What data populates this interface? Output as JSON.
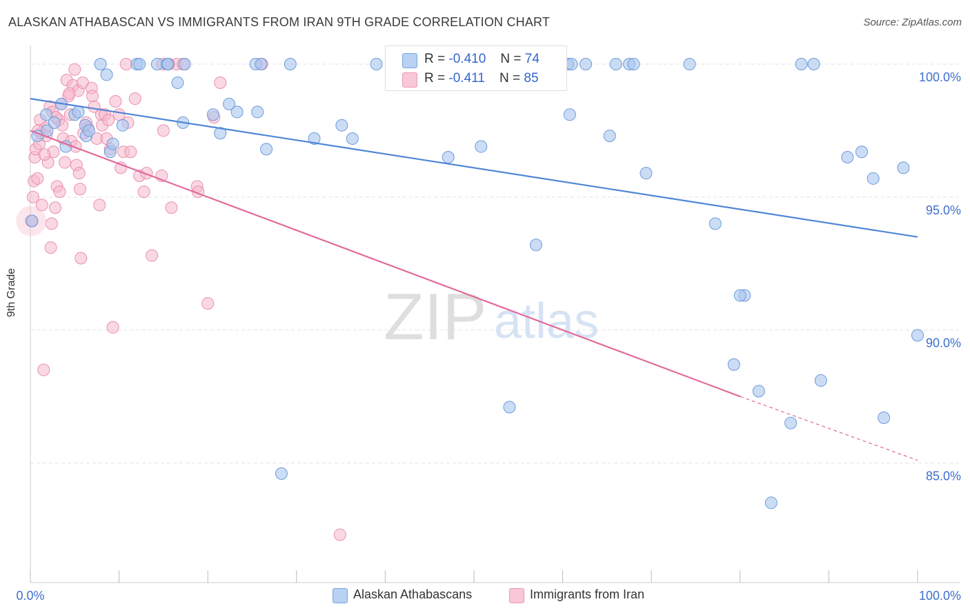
{
  "title": "ALASKAN ATHABASCAN VS IMMIGRANTS FROM IRAN 9TH GRADE CORRELATION CHART",
  "source": "Source: ZipAtlas.com",
  "watermark": {
    "zip": "ZIP",
    "atlas": "atlas"
  },
  "colors": {
    "blue": "#4f86d6",
    "blue_fill": "#a9c7ef",
    "pink": "#e2699a",
    "pink_fill": "#f5b8cc",
    "grid": "#e2e2e2",
    "axis_text": "#3d6fcc"
  },
  "legend": {
    "rows": [
      {
        "r_label": "R =",
        "r_value": "-0.410",
        "n_label": "N =",
        "n_value": "74"
      },
      {
        "r_label": "R =",
        "r_value": "-0.411",
        "n_label": "N =",
        "n_value": "85"
      }
    ]
  },
  "bottom_legend": [
    "Alaskan Athabascans",
    "Immigrants from Iran"
  ],
  "chart_data": {
    "type": "scatter",
    "title": "ALASKAN ATHABASCAN VS IMMIGRANTS FROM IRAN 9TH GRADE CORRELATION CHART",
    "xlabel": "",
    "ylabel": "9th Grade",
    "xlim": [
      0,
      100
    ],
    "ylim": [
      80.5,
      100.7
    ],
    "x_tick_labels": [
      "0.0%",
      "100.0%"
    ],
    "y_ticks": [
      85,
      90,
      95,
      100
    ],
    "y_tick_labels": [
      "85.0%",
      "90.0%",
      "95.0%",
      "100.0%"
    ],
    "grid": true,
    "legend_position": "top-center",
    "series": [
      {
        "name": "Alaskan Athabascans",
        "r": -0.41,
        "n": 74,
        "trend": {
          "x0": 0,
          "y0": 98.7,
          "x1": 100,
          "y1": 93.5
        },
        "points": [
          [
            0.2,
            94.1
          ],
          [
            0.8,
            97.3
          ],
          [
            1.8,
            98.1
          ],
          [
            1.9,
            97.5
          ],
          [
            2.7,
            97.8
          ],
          [
            3.5,
            98.5
          ],
          [
            4.0,
            96.9
          ],
          [
            5.0,
            98.1
          ],
          [
            5.4,
            98.2
          ],
          [
            6.2,
            97.7
          ],
          [
            6.3,
            97.3
          ],
          [
            6.6,
            97.5
          ],
          [
            7.9,
            100.0
          ],
          [
            8.6,
            99.6
          ],
          [
            9.0,
            96.7
          ],
          [
            9.3,
            97.0
          ],
          [
            10.4,
            97.7
          ],
          [
            12.0,
            100.0
          ],
          [
            12.3,
            100.0
          ],
          [
            14.3,
            100.0
          ],
          [
            15.4,
            100.0
          ],
          [
            15.5,
            100.0
          ],
          [
            16.6,
            99.3
          ],
          [
            17.2,
            97.8
          ],
          [
            17.4,
            100.0
          ],
          [
            20.6,
            98.1
          ],
          [
            21.4,
            97.4
          ],
          [
            22.4,
            98.5
          ],
          [
            23.3,
            98.2
          ],
          [
            25.4,
            100.0
          ],
          [
            26.0,
            100.0
          ],
          [
            25.6,
            98.2
          ],
          [
            26.6,
            96.8
          ],
          [
            28.3,
            84.6
          ],
          [
            29.3,
            100.0
          ],
          [
            32.0,
            97.2
          ],
          [
            35.1,
            97.7
          ],
          [
            36.3,
            97.2
          ],
          [
            39.0,
            100.0
          ],
          [
            40.7,
            100.0
          ],
          [
            44.0,
            100.0
          ],
          [
            47.1,
            96.5
          ],
          [
            50.2,
            100.0
          ],
          [
            50.8,
            96.9
          ],
          [
            52.1,
            100.0
          ],
          [
            55.4,
            100.0
          ],
          [
            57.0,
            93.2
          ],
          [
            60.8,
            98.1
          ],
          [
            62.6,
            100.0
          ],
          [
            65.3,
            97.3
          ],
          [
            66.0,
            100.0
          ],
          [
            67.5,
            100.0
          ],
          [
            69.4,
            95.9
          ],
          [
            74.3,
            100.0
          ],
          [
            77.2,
            94.0
          ],
          [
            79.3,
            88.7
          ],
          [
            82.1,
            87.7
          ],
          [
            83.5,
            83.5
          ],
          [
            85.7,
            86.5
          ],
          [
            88.3,
            100.0
          ],
          [
            89.1,
            88.1
          ],
          [
            92.1,
            96.5
          ],
          [
            93.7,
            96.7
          ],
          [
            95.0,
            95.7
          ],
          [
            96.2,
            86.7
          ],
          [
            98.4,
            96.1
          ],
          [
            100.0,
            89.8
          ],
          [
            54.0,
            87.1
          ],
          [
            60.6,
            100.0
          ],
          [
            61.0,
            100.0
          ],
          [
            80.5,
            91.3
          ],
          [
            80.0,
            91.3
          ],
          [
            86.9,
            100.0
          ],
          [
            68.0,
            100.0
          ]
        ]
      },
      {
        "name": "Immigrants from Iran",
        "r": -0.411,
        "n": 85,
        "trend": {
          "x0": 0,
          "y0": 97.5,
          "x1": 80,
          "y1": 87.5,
          "dash_x1": 100,
          "dash_y1": 85.1
        },
        "points": [
          [
            0.1,
            94.1
          ],
          [
            0.3,
            95.0
          ],
          [
            0.4,
            95.6
          ],
          [
            0.5,
            96.5
          ],
          [
            0.6,
            96.8
          ],
          [
            0.8,
            95.7
          ],
          [
            1.0,
            97.0
          ],
          [
            1.1,
            97.9
          ],
          [
            1.2,
            97.4
          ],
          [
            1.3,
            94.7
          ],
          [
            1.5,
            88.5
          ],
          [
            1.7,
            97.6
          ],
          [
            1.8,
            97.3
          ],
          [
            2.0,
            96.3
          ],
          [
            2.2,
            98.4
          ],
          [
            2.3,
            93.1
          ],
          [
            2.4,
            94.0
          ],
          [
            2.5,
            98.2
          ],
          [
            2.6,
            96.7
          ],
          [
            2.8,
            94.6
          ],
          [
            3.0,
            95.4
          ],
          [
            3.2,
            97.9
          ],
          [
            3.3,
            95.2
          ],
          [
            3.5,
            98.5
          ],
          [
            3.7,
            97.2
          ],
          [
            3.9,
            96.3
          ],
          [
            4.1,
            99.4
          ],
          [
            4.3,
            98.8
          ],
          [
            4.5,
            98.1
          ],
          [
            4.6,
            97.1
          ],
          [
            4.8,
            99.2
          ],
          [
            5.0,
            99.8
          ],
          [
            5.2,
            96.2
          ],
          [
            5.4,
            99.0
          ],
          [
            5.5,
            95.9
          ],
          [
            5.6,
            95.3
          ],
          [
            5.7,
            92.7
          ],
          [
            5.9,
            99.3
          ],
          [
            6.3,
            97.8
          ],
          [
            6.5,
            97.6
          ],
          [
            6.9,
            99.1
          ],
          [
            7.0,
            98.8
          ],
          [
            7.2,
            98.4
          ],
          [
            7.5,
            97.2
          ],
          [
            7.8,
            94.7
          ],
          [
            8.0,
            98.1
          ],
          [
            8.1,
            97.7
          ],
          [
            8.4,
            98.1
          ],
          [
            8.6,
            97.2
          ],
          [
            9.0,
            96.8
          ],
          [
            9.3,
            90.1
          ],
          [
            9.6,
            98.6
          ],
          [
            10.0,
            98.1
          ],
          [
            10.2,
            96.1
          ],
          [
            10.5,
            96.7
          ],
          [
            11.0,
            97.8
          ],
          [
            11.3,
            96.7
          ],
          [
            11.8,
            98.7
          ],
          [
            12.3,
            95.8
          ],
          [
            12.8,
            95.2
          ],
          [
            13.1,
            95.9
          ],
          [
            13.7,
            92.8
          ],
          [
            14.8,
            95.8
          ],
          [
            15.0,
            97.5
          ],
          [
            15.9,
            94.6
          ],
          [
            16.5,
            100.0
          ],
          [
            17.2,
            100.0
          ],
          [
            18.8,
            95.4
          ],
          [
            18.9,
            95.2
          ],
          [
            20.0,
            91.0
          ],
          [
            20.7,
            98.0
          ],
          [
            21.4,
            99.3
          ],
          [
            26.1,
            100.0
          ],
          [
            34.9,
            82.3
          ],
          [
            10.8,
            100.0
          ],
          [
            14.9,
            100.0
          ],
          [
            15.6,
            100.0
          ],
          [
            4.4,
            98.9
          ],
          [
            0.9,
            97.5
          ],
          [
            2.9,
            98.0
          ],
          [
            5.1,
            96.9
          ],
          [
            3.6,
            97.7
          ],
          [
            1.6,
            96.6
          ],
          [
            6.0,
            97.4
          ],
          [
            8.8,
            97.9
          ]
        ]
      }
    ]
  }
}
